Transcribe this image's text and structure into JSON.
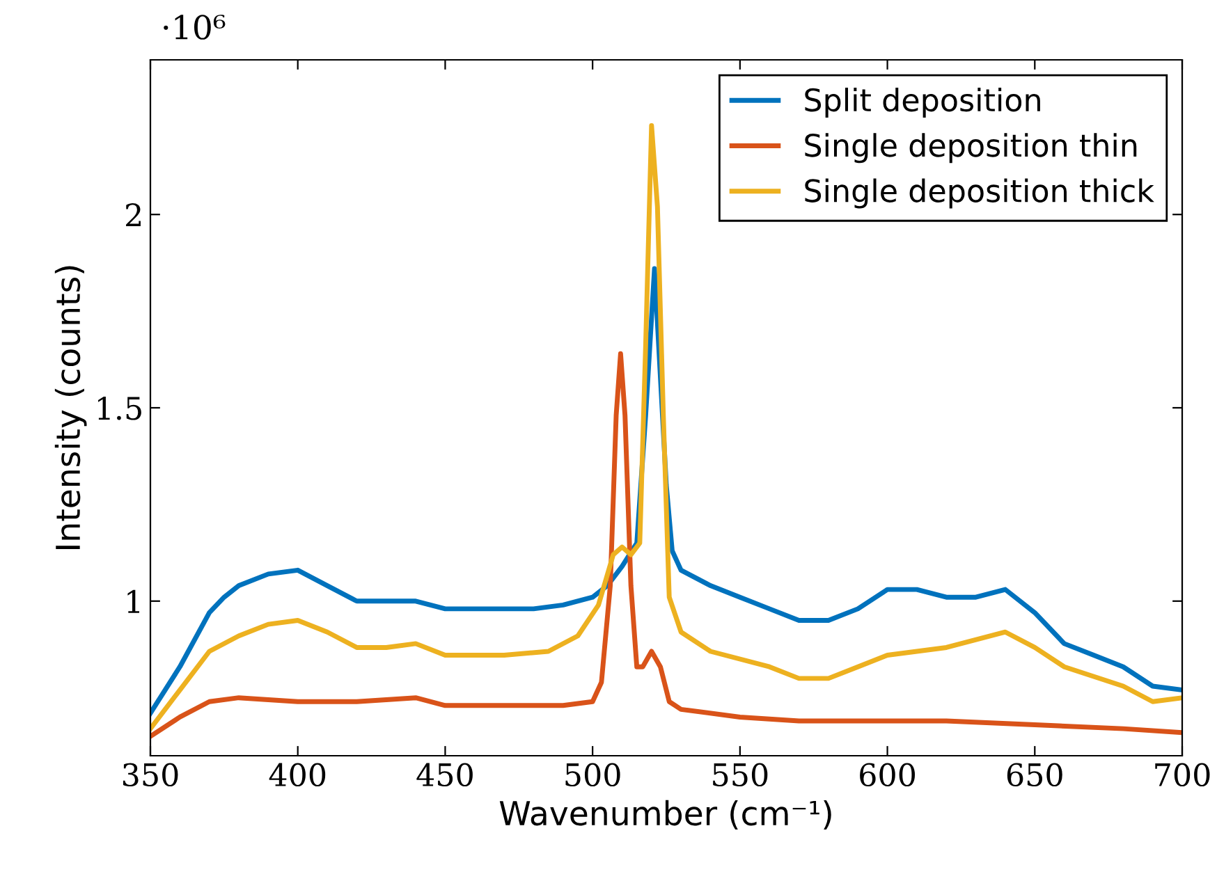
{
  "chart_data": {
    "type": "line",
    "xlabel": "Wavenumber (cm⁻¹)",
    "ylabel": "Intensity (counts)",
    "annotations": [
      "·10⁶"
    ],
    "xlim": [
      350,
      700
    ],
    "ylim": [
      0.6,
      2.4
    ],
    "xticks": [
      350,
      400,
      450,
      500,
      550,
      600,
      650,
      700
    ],
    "yticks": [
      1,
      1.5,
      2
    ],
    "grid": false,
    "legend": "top right",
    "line_style": "solid",
    "marker": "none",
    "series": [
      {
        "name": "Split deposition",
        "color": "#0072bd",
        "x": [
          350,
          360,
          370,
          375,
          380,
          390,
          400,
          410,
          420,
          430,
          440,
          450,
          460,
          470,
          480,
          490,
          500,
          505,
          510,
          515,
          518,
          521,
          525,
          527,
          530,
          540,
          550,
          560,
          570,
          580,
          590,
          600,
          610,
          620,
          630,
          640,
          650,
          660,
          670,
          680,
          690,
          700
        ],
        "values": [
          0.71,
          0.83,
          0.97,
          1.01,
          1.04,
          1.07,
          1.08,
          1.04,
          1.0,
          1.0,
          1.0,
          0.98,
          0.98,
          0.98,
          0.98,
          0.99,
          1.01,
          1.04,
          1.09,
          1.15,
          1.48,
          1.86,
          1.3,
          1.13,
          1.08,
          1.04,
          1.01,
          0.98,
          0.95,
          0.95,
          0.98,
          1.03,
          1.03,
          1.01,
          1.01,
          1.03,
          0.97,
          0.89,
          0.86,
          0.83,
          0.78,
          0.77
        ]
      },
      {
        "name": "Single deposition thin",
        "color": "#d95319",
        "x": [
          350,
          360,
          370,
          380,
          400,
          420,
          440,
          450,
          470,
          490,
          500,
          503,
          506,
          508,
          509.5,
          511,
          513,
          515,
          517,
          520,
          523,
          526,
          530,
          550,
          570,
          600,
          620,
          650,
          680,
          700
        ],
        "values": [
          0.65,
          0.7,
          0.74,
          0.75,
          0.74,
          0.74,
          0.75,
          0.73,
          0.73,
          0.73,
          0.74,
          0.79,
          1.04,
          1.48,
          1.64,
          1.48,
          1.04,
          0.83,
          0.83,
          0.87,
          0.83,
          0.74,
          0.72,
          0.7,
          0.69,
          0.69,
          0.69,
          0.68,
          0.67,
          0.66
        ]
      },
      {
        "name": "Single deposition thick",
        "color": "#edb120",
        "x": [
          350,
          360,
          370,
          380,
          390,
          400,
          410,
          420,
          430,
          440,
          450,
          470,
          485,
          495,
          502,
          507,
          510,
          513,
          516,
          518,
          520,
          522,
          524,
          526,
          530,
          540,
          560,
          570,
          580,
          590,
          600,
          620,
          640,
          650,
          660,
          680,
          690,
          700
        ],
        "values": [
          0.67,
          0.77,
          0.87,
          0.91,
          0.94,
          0.95,
          0.92,
          0.88,
          0.88,
          0.89,
          0.86,
          0.86,
          0.87,
          0.91,
          0.99,
          1.12,
          1.14,
          1.12,
          1.15,
          1.66,
          2.23,
          2.02,
          1.48,
          1.01,
          0.92,
          0.87,
          0.83,
          0.8,
          0.8,
          0.83,
          0.86,
          0.88,
          0.92,
          0.88,
          0.83,
          0.78,
          0.74,
          0.75
        ]
      }
    ]
  }
}
